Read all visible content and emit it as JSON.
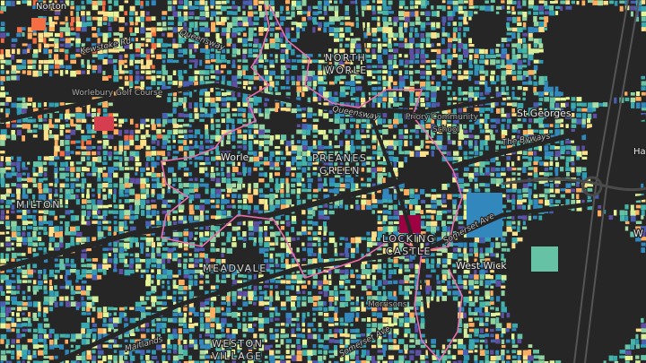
{
  "labels": {
    "norton": "Norton",
    "kewstoke_rd": "Kewstoke Rd",
    "queensway_1": "Queensway",
    "worlebury_golf": "Worlebury Golf Course",
    "north_worle": [
      "NORTH",
      "WORLE"
    ],
    "queensway_2": "Queensway",
    "priory_school": [
      "Priory Community",
      "School"
    ],
    "st_georges": "St Georges",
    "the_byways": "The Byways",
    "hay": "Hay",
    "worle": "Worle",
    "preanes_green": [
      "PREANES",
      "GREEN"
    ],
    "milton": "MILTON",
    "meadvale": "MEADVALE",
    "locking_castle": [
      "LOCKING",
      "CASTLE"
    ],
    "somerset_ave_1": "Somerset Ave",
    "west_wick": "West Wick",
    "morrisons": "Morrisons",
    "somerset_ave_2": "Somerset Ave",
    "maitlands": "Maitlands",
    "weston_village": [
      "WESTON",
      "VILLAGE"
    ],
    "w_edge": "W"
  }
}
